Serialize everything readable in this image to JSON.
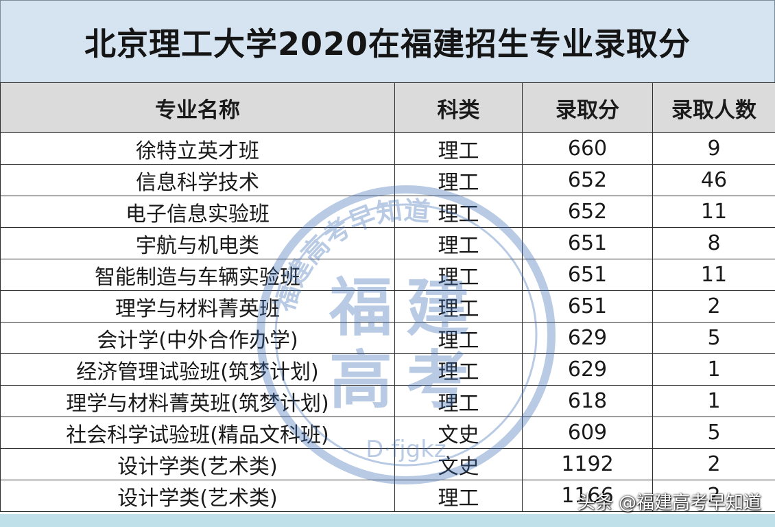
{
  "title": "北京理工大学2020在福建招生专业录取分",
  "table": {
    "headers": [
      "专业名称",
      "科类",
      "录取分",
      "录取人数"
    ],
    "rows": [
      [
        "徐特立英才班",
        "理工",
        "660",
        "9"
      ],
      [
        "信息科学技术",
        "理工",
        "652",
        "46"
      ],
      [
        "电子信息实验班",
        "理工",
        "652",
        "11"
      ],
      [
        "宇航与机电类",
        "理工",
        "651",
        "8"
      ],
      [
        "智能制造与车辆实验班",
        "理工",
        "651",
        "11"
      ],
      [
        "理学与材料菁英班",
        "理工",
        "651",
        "2"
      ],
      [
        "会计学(中外合作办学)",
        "理工",
        "629",
        "5"
      ],
      [
        "经济管理试验班(筑梦计划)",
        "理工",
        "629",
        "1"
      ],
      [
        "理学与材料菁英班(筑梦计划)",
        "理工",
        "618",
        "1"
      ],
      [
        "社会科学试验班(精品文科班)",
        "文史",
        "609",
        "5"
      ],
      [
        "设计学类(艺术类)",
        "文史",
        "1192",
        "2"
      ],
      [
        "设计学类(艺术类)",
        "理工",
        "1166",
        "2"
      ]
    ]
  },
  "watermark": {
    "center_text": "福建高考",
    "ring_text": "福建高考早知道",
    "bottom_text": "D·fjgkz",
    "color": "#3a6db5"
  },
  "source": "头条 @福建高考早知道",
  "colors": {
    "title_bg": "#d5e4f0",
    "header_bg": "#dbdbdb",
    "strip": "#bfe0e8"
  }
}
